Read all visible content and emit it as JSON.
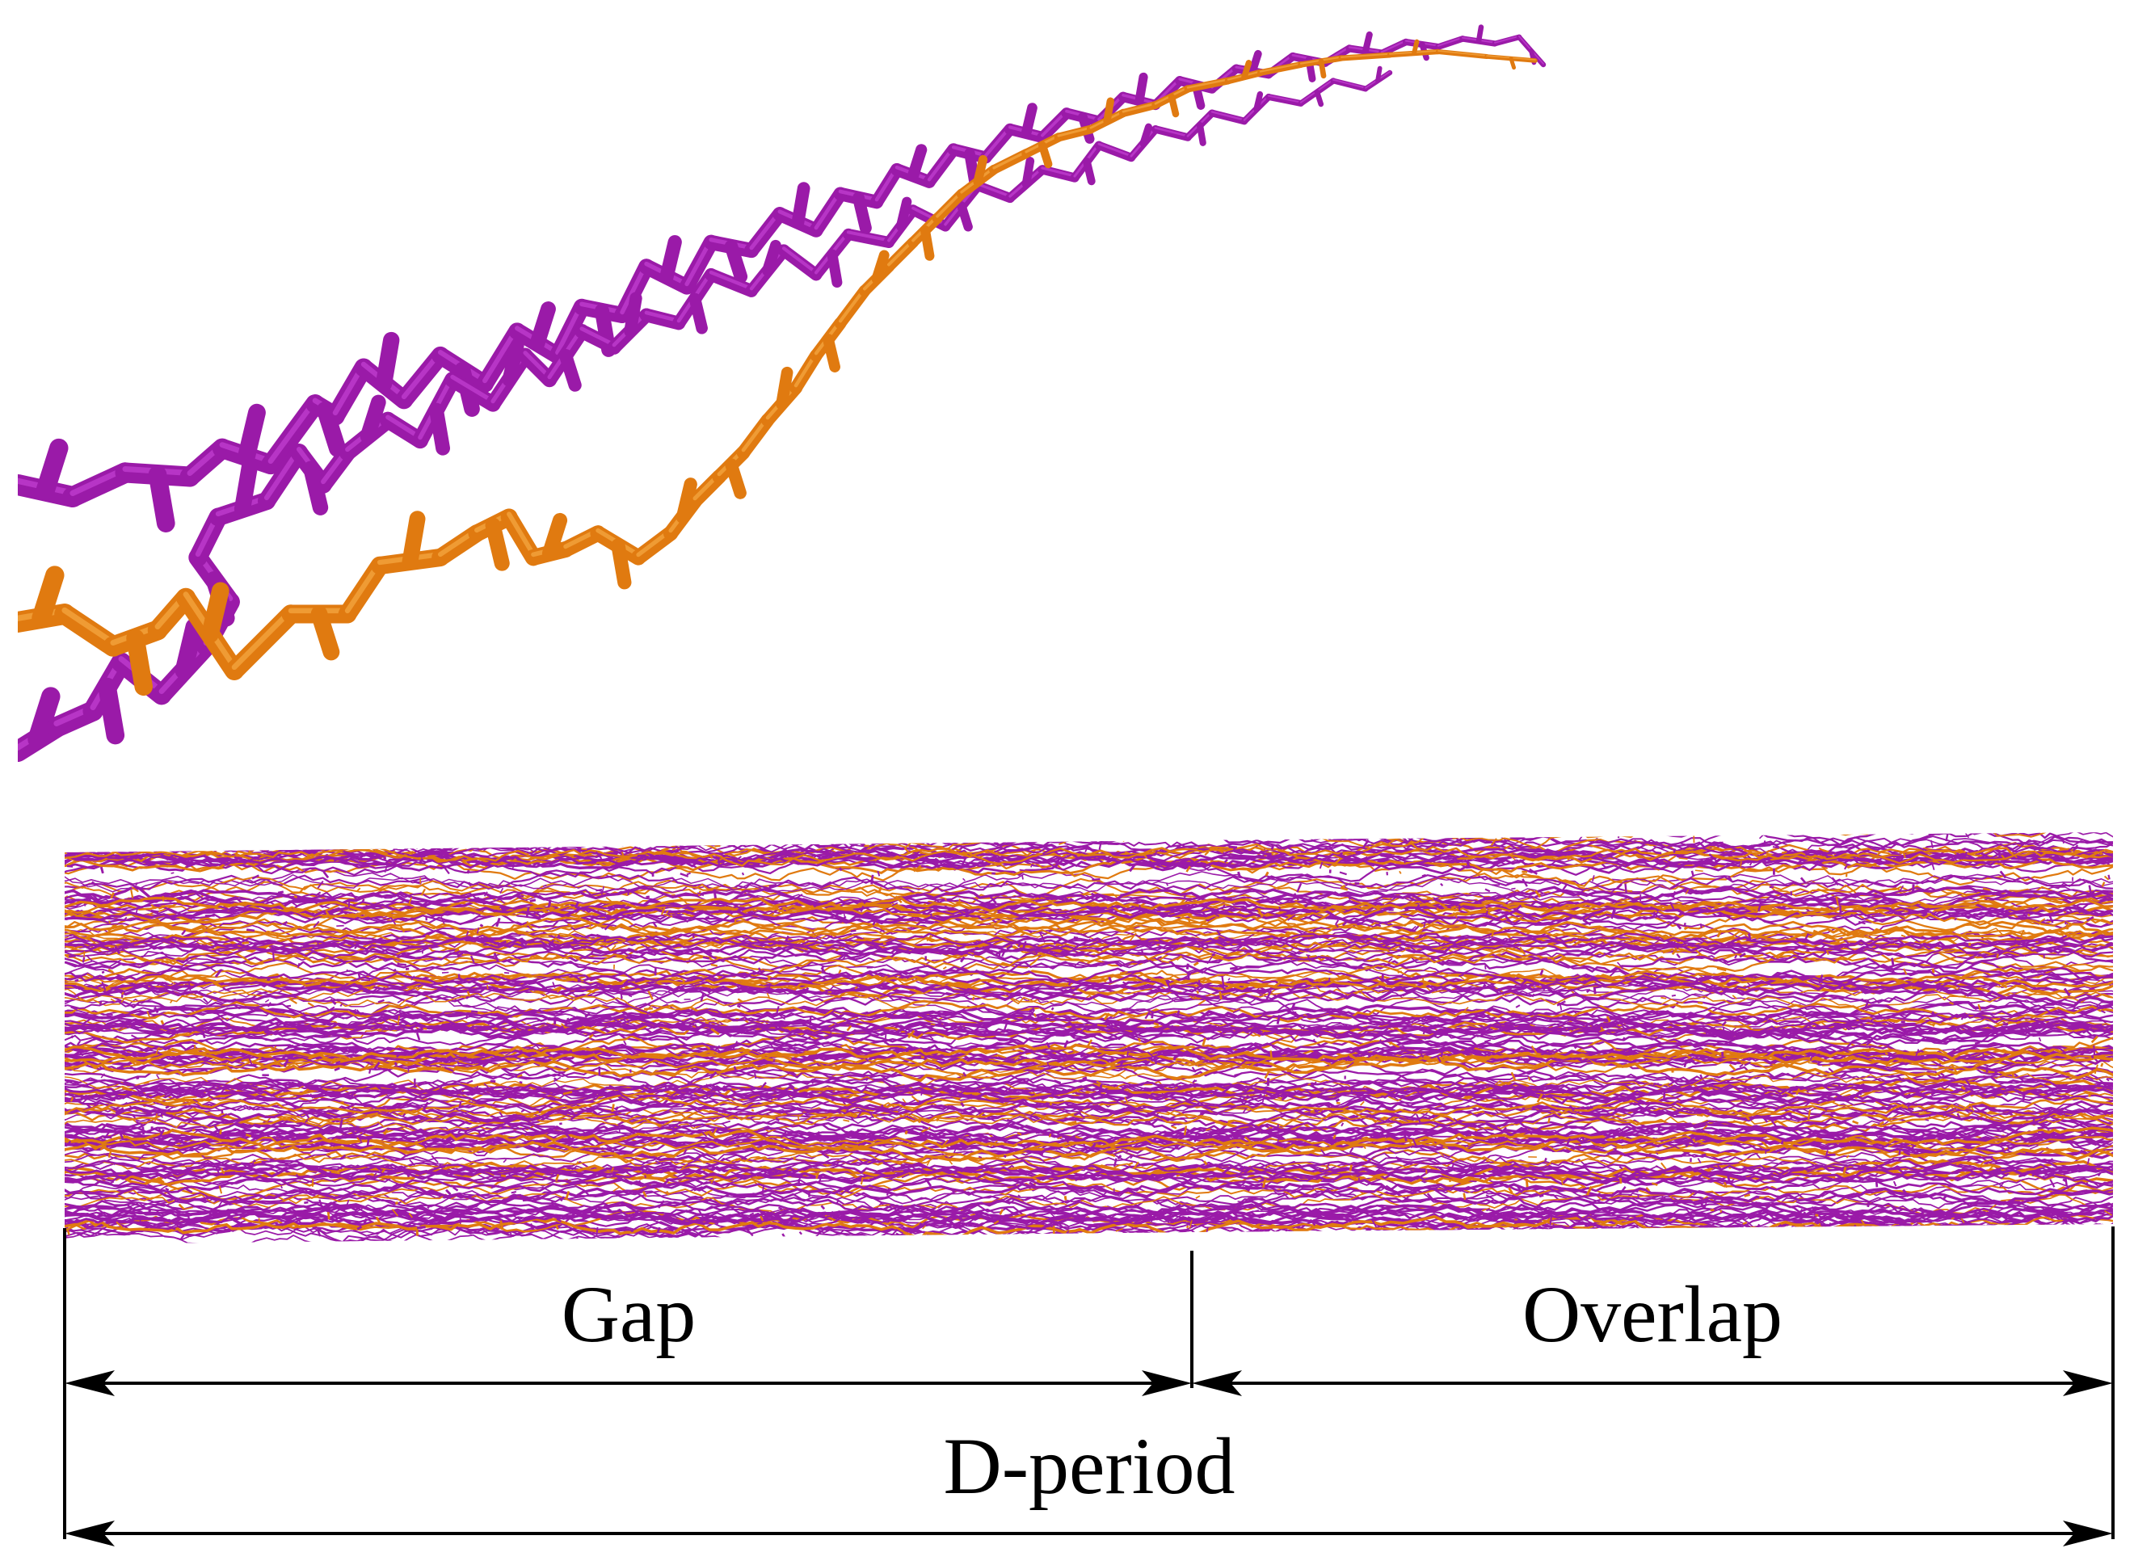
{
  "labels": {
    "gap": "Gap",
    "overlap": "Overlap",
    "d_period": "D-period"
  },
  "colors": {
    "strand_primary": "#9a1aa8",
    "strand_primary_highlight": "#c13fd0",
    "strand_secondary": "#e07a10",
    "strand_secondary_highlight": "#f5a640",
    "line": "#000000",
    "background": "#ffffff"
  }
}
